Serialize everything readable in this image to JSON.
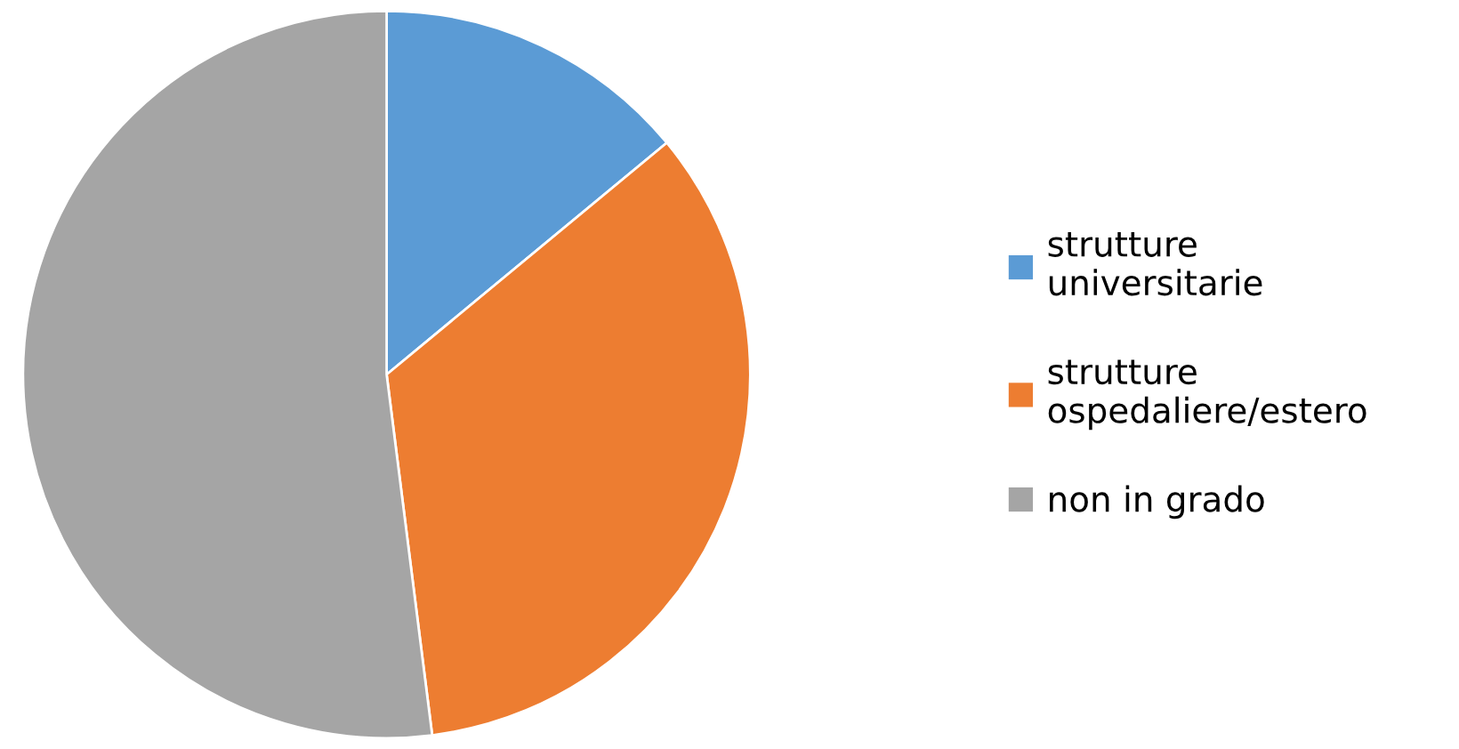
{
  "chart_data": {
    "type": "pie",
    "categories": [
      "strutture universitarie",
      "strutture ospedaliere/estero",
      "non in grado"
    ],
    "values": [
      14,
      34,
      52
    ],
    "colors": [
      "#5b9bd5",
      "#ed7d31",
      "#a5a5a5"
    ],
    "legend": "right"
  }
}
